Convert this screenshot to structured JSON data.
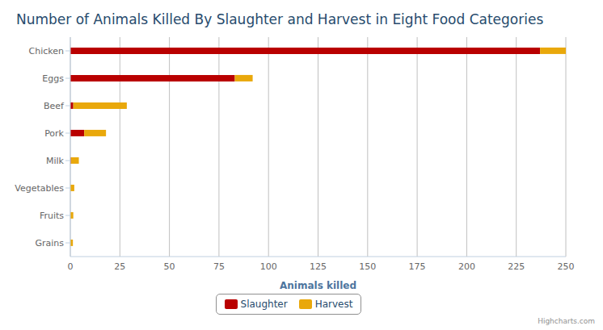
{
  "chart_data": {
    "type": "bar",
    "orientation": "horizontal",
    "stacked": true,
    "title": "Number of Animals Killed By Slaughter and Harvest in Eight Food Categories",
    "x_label": "Animals killed",
    "credits": "Highcharts.com",
    "categories": [
      "Chicken",
      "Eggs",
      "Beef",
      "Pork",
      "Milk",
      "Vegetables",
      "Fruits",
      "Grains"
    ],
    "series": [
      {
        "name": "Slaughter",
        "color": "#b90000",
        "values": [
          237,
          83,
          1.5,
          7,
          0.3,
          0,
          0,
          0
        ]
      },
      {
        "name": "Harvest",
        "color": "#e9a80b",
        "values": [
          13,
          9,
          27,
          11,
          4,
          2,
          1.5,
          1.3
        ]
      }
    ],
    "xlim": [
      0,
      250
    ],
    "xticks": [
      0,
      25,
      50,
      75,
      100,
      125,
      150,
      175,
      200,
      225,
      250
    ],
    "grid": true,
    "legend": "bottom"
  }
}
